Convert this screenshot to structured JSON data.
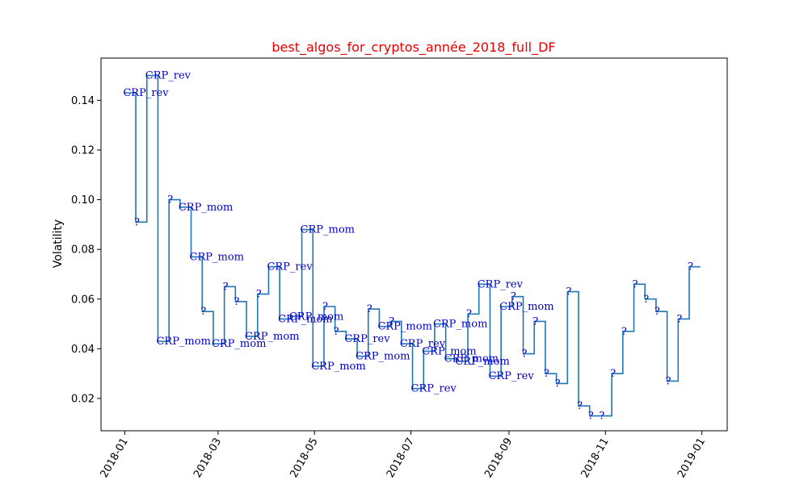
{
  "chart_data": {
    "type": "line",
    "title": "best_algos_for_cryptos_année_2018_full_DF",
    "xlabel": "",
    "ylabel": "Volatility",
    "colors": {
      "title": "#e60000",
      "line": "#1f77b4",
      "annotation": "#0000cc"
    },
    "grid": false,
    "legend": "none",
    "xlim": [
      "2017-12-17",
      "2019-01-17"
    ],
    "ylim": [
      0.007,
      0.157
    ],
    "x_ticks": [
      "2018-01-01",
      "2018-03-01",
      "2018-05-01",
      "2018-07-01",
      "2018-09-01",
      "2018-11-01",
      "2019-01-01"
    ],
    "x_tick_labels": [
      "2018-01",
      "2018-03",
      "2018-05",
      "2018-07",
      "2018-09",
      "2018-11",
      "2019-01"
    ],
    "y_ticks": [
      0.02,
      0.04,
      0.06,
      0.08,
      0.1,
      0.12,
      0.14
    ],
    "y_tick_labels": [
      "0.02",
      "0.04",
      "0.06",
      "0.08",
      "0.10",
      "0.12",
      "0.14"
    ],
    "series": [
      {
        "points": [
          {
            "x": "2018-01-01",
            "y": 0.143,
            "label": "CRP_rev"
          },
          {
            "x": "2018-01-08",
            "y": 0.091,
            "label": "?"
          },
          {
            "x": "2018-01-15",
            "y": 0.15,
            "label": "CRP_rev"
          },
          {
            "x": "2018-01-22",
            "y": 0.043,
            "label": "CRP_mom"
          },
          {
            "x": "2018-01-29",
            "y": 0.1,
            "label": "?"
          },
          {
            "x": "2018-02-05",
            "y": 0.097,
            "label": "CRP_mom"
          },
          {
            "x": "2018-02-12",
            "y": 0.077,
            "label": "CRP_mom"
          },
          {
            "x": "2018-02-19",
            "y": 0.055,
            "label": "?"
          },
          {
            "x": "2018-02-26",
            "y": 0.042,
            "label": "CRP_mom"
          },
          {
            "x": "2018-03-05",
            "y": 0.065,
            "label": "?"
          },
          {
            "x": "2018-03-12",
            "y": 0.059,
            "label": "?"
          },
          {
            "x": "2018-03-19",
            "y": 0.045,
            "label": "CRP_mom"
          },
          {
            "x": "2018-03-26",
            "y": 0.062,
            "label": "?"
          },
          {
            "x": "2018-04-02",
            "y": 0.073,
            "label": "CRP_rev"
          },
          {
            "x": "2018-04-09",
            "y": 0.052,
            "label": "CRP_mom"
          },
          {
            "x": "2018-04-16",
            "y": 0.053,
            "label": "CRP_mom"
          },
          {
            "x": "2018-04-23",
            "y": 0.088,
            "label": "CRP_mom"
          },
          {
            "x": "2018-04-30",
            "y": 0.033,
            "label": "CRP_mom"
          },
          {
            "x": "2018-05-07",
            "y": 0.057,
            "label": "?"
          },
          {
            "x": "2018-05-14",
            "y": 0.047,
            "label": "?"
          },
          {
            "x": "2018-05-21",
            "y": 0.044,
            "label": "CRP_rev"
          },
          {
            "x": "2018-05-28",
            "y": 0.037,
            "label": "CRP_mom"
          },
          {
            "x": "2018-06-04",
            "y": 0.056,
            "label": "?"
          },
          {
            "x": "2018-06-11",
            "y": 0.049,
            "label": "CRP_mom"
          },
          {
            "x": "2018-06-18",
            "y": 0.051,
            "label": "?"
          },
          {
            "x": "2018-06-25",
            "y": 0.042,
            "label": "CRP_rev"
          },
          {
            "x": "2018-07-02",
            "y": 0.024,
            "label": "CRP_rev"
          },
          {
            "x": "2018-07-09",
            "y": 0.039,
            "label": "CRP_mom"
          },
          {
            "x": "2018-07-16",
            "y": 0.05,
            "label": "CRP_mom"
          },
          {
            "x": "2018-07-23",
            "y": 0.036,
            "label": "CRP_mom"
          },
          {
            "x": "2018-07-30",
            "y": 0.035,
            "label": "CRP_mom"
          },
          {
            "x": "2018-08-06",
            "y": 0.054,
            "label": "?"
          },
          {
            "x": "2018-08-13",
            "y": 0.066,
            "label": "CRP_rev"
          },
          {
            "x": "2018-08-20",
            "y": 0.029,
            "label": "CRP_rev"
          },
          {
            "x": "2018-08-27",
            "y": 0.057,
            "label": "CRP_mom"
          },
          {
            "x": "2018-09-03",
            "y": 0.061,
            "label": "?"
          },
          {
            "x": "2018-09-10",
            "y": 0.038,
            "label": "?"
          },
          {
            "x": "2018-09-17",
            "y": 0.051,
            "label": "?"
          },
          {
            "x": "2018-09-24",
            "y": 0.03,
            "label": "?"
          },
          {
            "x": "2018-10-01",
            "y": 0.026,
            "label": "?"
          },
          {
            "x": "2018-10-08",
            "y": 0.063,
            "label": "?"
          },
          {
            "x": "2018-10-15",
            "y": 0.017,
            "label": "?"
          },
          {
            "x": "2018-10-22",
            "y": 0.013,
            "label": "?"
          },
          {
            "x": "2018-10-29",
            "y": 0.013,
            "label": "?"
          },
          {
            "x": "2018-11-05",
            "y": 0.03,
            "label": "?"
          },
          {
            "x": "2018-11-12",
            "y": 0.047,
            "label": "?"
          },
          {
            "x": "2018-11-19",
            "y": 0.066,
            "label": "?"
          },
          {
            "x": "2018-11-26",
            "y": 0.06,
            "label": "?"
          },
          {
            "x": "2018-12-03",
            "y": 0.055,
            "label": "?"
          },
          {
            "x": "2018-12-10",
            "y": 0.027,
            "label": "?"
          },
          {
            "x": "2018-12-17",
            "y": 0.052,
            "label": "?"
          },
          {
            "x": "2018-12-24",
            "y": 0.073,
            "label": "?"
          }
        ],
        "end_x": "2018-12-31"
      }
    ]
  }
}
